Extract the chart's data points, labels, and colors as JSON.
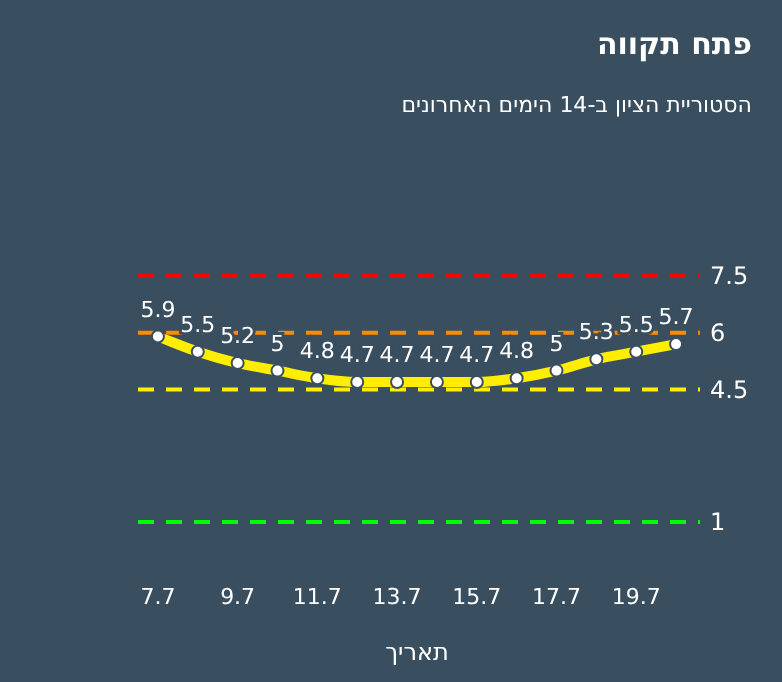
{
  "chart_data": {
    "type": "line",
    "title": "פתח תקווה",
    "subtitle": "הסטוריית הציון ב-14 הימים האחרונים",
    "xlabel": "תאריך",
    "categories": [
      "7.7",
      null,
      "9.7",
      null,
      "11.7",
      null,
      "13.7",
      null,
      "15.7",
      null,
      "17.7",
      null,
      "19.7",
      null
    ],
    "values": [
      5.9,
      5.5,
      5.2,
      5,
      4.8,
      4.7,
      4.7,
      4.7,
      4.7,
      4.8,
      5,
      5.3,
      5.5,
      5.7
    ],
    "color": "#ffee00",
    "marker": "circle",
    "line_style": "solid",
    "data_labels": true,
    "tick_labels": "x",
    "ref_lines": [
      {
        "axis": "y",
        "value": 7.5,
        "label": "7.5",
        "color": "#ff0000",
        "line_style": "dashed"
      },
      {
        "axis": "y",
        "value": 6,
        "label": "6",
        "color": "#ff8c00",
        "line_style": "dashed"
      },
      {
        "axis": "y",
        "value": 4.5,
        "label": "4.5",
        "color": "#ffee00",
        "line_style": "dashed"
      },
      {
        "axis": "y",
        "value": 1,
        "label": "1",
        "color": "#00ff00",
        "line_style": "dashed"
      }
    ]
  }
}
